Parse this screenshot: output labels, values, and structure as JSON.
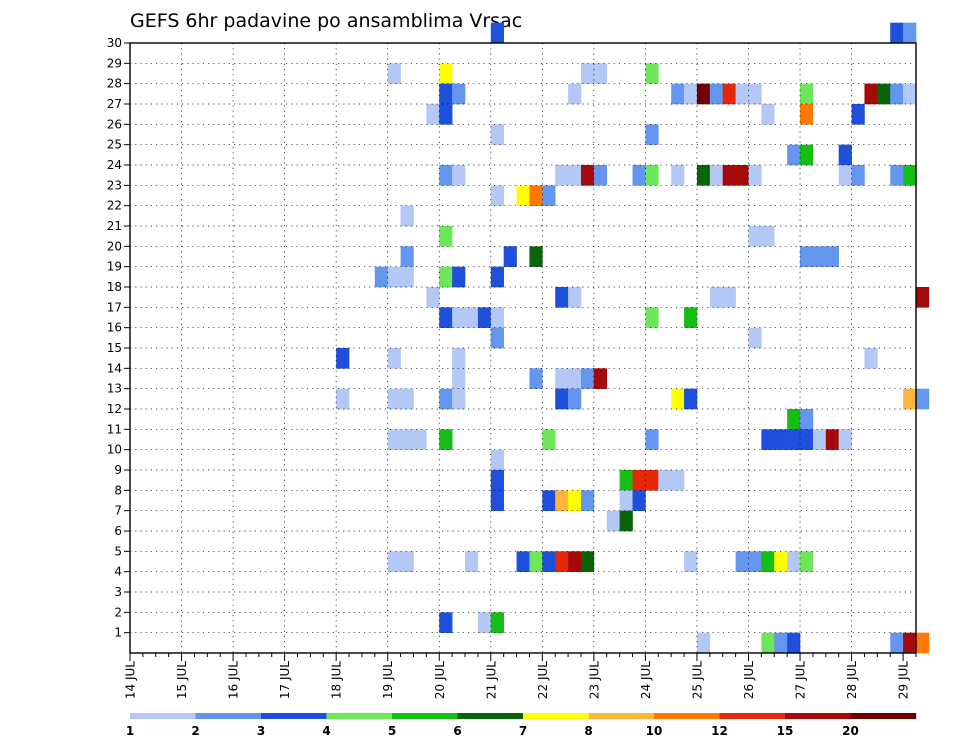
{
  "chart_data": {
    "type": "heatmap",
    "title": "GEFS 6hr padavine po ansamblima Vrsac",
    "x_ticks": [
      "14 JUL",
      "15 JUL",
      "16 JUL",
      "17 JUL",
      "18 JUL",
      "19 JUL",
      "20 JUL",
      "21 JUL",
      "22 JUL",
      "23 JUL",
      "24 JUL",
      "25 JUL",
      "26 JUL",
      "27 JUL",
      "28 JUL",
      "29 JUL"
    ],
    "y_ticks": [
      "1",
      "2",
      "3",
      "4",
      "5",
      "6",
      "7",
      "8",
      "9",
      "10",
      "11",
      "12",
      "13",
      "14",
      "15",
      "16",
      "17",
      "18",
      "19",
      "20",
      "21",
      "22",
      "23",
      "24",
      "25",
      "26",
      "27",
      "28",
      "29",
      "30"
    ],
    "x_range": [
      "14 JUL 00h",
      "29 JUL 06h"
    ],
    "x_step_hours": 6,
    "y_range": [
      0,
      30
    ],
    "grid": true,
    "colorbar": {
      "position": "bottom",
      "labels": [
        "1",
        "2",
        "3",
        "4",
        "5",
        "6",
        "7",
        "8",
        "10",
        "12",
        "15",
        "20"
      ],
      "colors": [
        "#b4c8f5",
        "#6496f0",
        "#1e50dc",
        "#6ee65a",
        "#14be14",
        "#0a640a",
        "#ffff00",
        "#ffb43c",
        "#ff7800",
        "#e6280a",
        "#a50a0a",
        "#6e0000"
      ]
    },
    "cells": [
      {
        "x": "21 JUL 00h",
        "y": 30,
        "level": 3
      },
      {
        "x": "28 JUL 18h",
        "y": 30,
        "level": 3
      },
      {
        "x": "29 JUL 00h",
        "y": 30,
        "level": 2
      },
      {
        "x": "19 JUL 00h",
        "y": 28,
        "level": 1
      },
      {
        "x": "20 JUL 00h",
        "y": 28,
        "level": 7
      },
      {
        "x": "22 JUL 18h",
        "y": 28,
        "level": 1
      },
      {
        "x": "23 JUL 00h",
        "y": 28,
        "level": 1
      },
      {
        "x": "24 JUL 00h",
        "y": 28,
        "level": 4
      },
      {
        "x": "20 JUL 00h",
        "y": 27,
        "level": 3
      },
      {
        "x": "20 JUL 06h",
        "y": 27,
        "level": 2
      },
      {
        "x": "22 JUL 12h",
        "y": 27,
        "level": 1
      },
      {
        "x": "24 JUL 12h",
        "y": 27,
        "level": 2
      },
      {
        "x": "24 JUL 18h",
        "y": 27,
        "level": 1
      },
      {
        "x": "25 JUL 00h",
        "y": 27,
        "level": 12
      },
      {
        "x": "25 JUL 06h",
        "y": 27,
        "level": 2
      },
      {
        "x": "25 JUL 12h",
        "y": 27,
        "level": 10
      },
      {
        "x": "25 JUL 18h",
        "y": 27,
        "level": 1
      },
      {
        "x": "26 JUL 00h",
        "y": 27,
        "level": 1
      },
      {
        "x": "27 JUL 00h",
        "y": 27,
        "level": 4
      },
      {
        "x": "28 JUL 06h",
        "y": 27,
        "level": 11
      },
      {
        "x": "28 JUL 12h",
        "y": 27,
        "level": 6
      },
      {
        "x": "28 JUL 18h",
        "y": 27,
        "level": 2
      },
      {
        "x": "29 JUL 00h",
        "y": 27,
        "level": 1
      },
      {
        "x": "19 JUL 18h",
        "y": 26,
        "level": 1
      },
      {
        "x": "20 JUL 00h",
        "y": 26,
        "level": 3
      },
      {
        "x": "26 JUL 06h",
        "y": 26,
        "level": 1
      },
      {
        "x": "27 JUL 00h",
        "y": 26,
        "level": 9
      },
      {
        "x": "28 JUL 00h",
        "y": 26,
        "level": 3
      },
      {
        "x": "21 JUL 00h",
        "y": 25,
        "level": 1
      },
      {
        "x": "24 JUL 00h",
        "y": 25,
        "level": 2
      },
      {
        "x": "26 JUL 18h",
        "y": 24,
        "level": 2
      },
      {
        "x": "27 JUL 00h",
        "y": 24,
        "level": 5
      },
      {
        "x": "27 JUL 18h",
        "y": 24,
        "level": 3
      },
      {
        "x": "20 JUL 00h",
        "y": 23,
        "level": 2
      },
      {
        "x": "20 JUL 06h",
        "y": 23,
        "level": 1
      },
      {
        "x": "22 JUL 06h",
        "y": 23,
        "level": 1
      },
      {
        "x": "22 JUL 12h",
        "y": 23,
        "level": 1
      },
      {
        "x": "22 JUL 18h",
        "y": 23,
        "level": 11
      },
      {
        "x": "23 JUL 00h",
        "y": 23,
        "level": 2
      },
      {
        "x": "23 JUL 18h",
        "y": 23,
        "level": 2
      },
      {
        "x": "24 JUL 00h",
        "y": 23,
        "level": 4
      },
      {
        "x": "24 JUL 12h",
        "y": 23,
        "level": 1
      },
      {
        "x": "25 JUL 00h",
        "y": 23,
        "level": 6
      },
      {
        "x": "25 JUL 06h",
        "y": 23,
        "level": 1
      },
      {
        "x": "25 JUL 12h",
        "y": 23,
        "level": 11
      },
      {
        "x": "25 JUL 18h",
        "y": 23,
        "level": 11
      },
      {
        "x": "26 JUL 00h",
        "y": 23,
        "level": 1
      },
      {
        "x": "27 JUL 18h",
        "y": 23,
        "level": 1
      },
      {
        "x": "28 JUL 00h",
        "y": 23,
        "level": 2
      },
      {
        "x": "28 JUL 18h",
        "y": 23,
        "level": 2
      },
      {
        "x": "29 JUL 00h",
        "y": 23,
        "level": 5
      },
      {
        "x": "21 JUL 00h",
        "y": 22,
        "level": 1
      },
      {
        "x": "21 JUL 12h",
        "y": 22,
        "level": 7
      },
      {
        "x": "21 JUL 18h",
        "y": 22,
        "level": 9
      },
      {
        "x": "22 JUL 00h",
        "y": 22,
        "level": 2
      },
      {
        "x": "19 JUL 06h",
        "y": 21,
        "level": 1
      },
      {
        "x": "20 JUL 00h",
        "y": 20,
        "level": 4
      },
      {
        "x": "26 JUL 00h",
        "y": 20,
        "level": 1
      },
      {
        "x": "26 JUL 06h",
        "y": 20,
        "level": 1
      },
      {
        "x": "19 JUL 06h",
        "y": 19,
        "level": 2
      },
      {
        "x": "21 JUL 06h",
        "y": 19,
        "level": 3
      },
      {
        "x": "21 JUL 18h",
        "y": 19,
        "level": 6
      },
      {
        "x": "27 JUL 00h",
        "y": 19,
        "level": 2
      },
      {
        "x": "27 JUL 06h",
        "y": 19,
        "level": 2
      },
      {
        "x": "27 JUL 12h",
        "y": 19,
        "level": 2
      },
      {
        "x": "18 JUL 18h",
        "y": 18,
        "level": 2
      },
      {
        "x": "19 JUL 00h",
        "y": 18,
        "level": 1
      },
      {
        "x": "19 JUL 06h",
        "y": 18,
        "level": 1
      },
      {
        "x": "20 JUL 00h",
        "y": 18,
        "level": 4
      },
      {
        "x": "20 JUL 06h",
        "y": 18,
        "level": 3
      },
      {
        "x": "21 JUL 00h",
        "y": 18,
        "level": 3
      },
      {
        "x": "19 JUL 18h",
        "y": 17,
        "level": 1
      },
      {
        "x": "22 JUL 06h",
        "y": 17,
        "level": 3
      },
      {
        "x": "22 JUL 12h",
        "y": 17,
        "level": 1
      },
      {
        "x": "25 JUL 06h",
        "y": 17,
        "level": 1
      },
      {
        "x": "25 JUL 12h",
        "y": 17,
        "level": 1
      },
      {
        "x": "29 JUL 06h",
        "y": 17,
        "level": 11
      },
      {
        "x": "20 JUL 00h",
        "y": 16,
        "level": 3
      },
      {
        "x": "20 JUL 06h",
        "y": 16,
        "level": 1
      },
      {
        "x": "20 JUL 12h",
        "y": 16,
        "level": 1
      },
      {
        "x": "20 JUL 18h",
        "y": 16,
        "level": 3
      },
      {
        "x": "21 JUL 00h",
        "y": 16,
        "level": 1
      },
      {
        "x": "24 JUL 00h",
        "y": 16,
        "level": 4
      },
      {
        "x": "24 JUL 18h",
        "y": 16,
        "level": 5
      },
      {
        "x": "21 JUL 00h",
        "y": 15,
        "level": 2
      },
      {
        "x": "26 JUL 00h",
        "y": 15,
        "level": 1
      },
      {
        "x": "18 JUL 00h",
        "y": 14,
        "level": 3
      },
      {
        "x": "19 JUL 00h",
        "y": 14,
        "level": 1
      },
      {
        "x": "20 JUL 06h",
        "y": 14,
        "level": 1
      },
      {
        "x": "28 JUL 06h",
        "y": 14,
        "level": 1
      },
      {
        "x": "20 JUL 06h",
        "y": 13,
        "level": 1
      },
      {
        "x": "21 JUL 18h",
        "y": 13,
        "level": 2
      },
      {
        "x": "22 JUL 06h",
        "y": 13,
        "level": 1
      },
      {
        "x": "22 JUL 12h",
        "y": 13,
        "level": 1
      },
      {
        "x": "22 JUL 18h",
        "y": 13,
        "level": 2
      },
      {
        "x": "23 JUL 00h",
        "y": 13,
        "level": 11
      },
      {
        "x": "18 JUL 00h",
        "y": 12,
        "level": 1
      },
      {
        "x": "19 JUL 00h",
        "y": 12,
        "level": 1
      },
      {
        "x": "19 JUL 06h",
        "y": 12,
        "level": 1
      },
      {
        "x": "20 JUL 00h",
        "y": 12,
        "level": 2
      },
      {
        "x": "20 JUL 06h",
        "y": 12,
        "level": 1
      },
      {
        "x": "22 JUL 06h",
        "y": 12,
        "level": 3
      },
      {
        "x": "22 JUL 12h",
        "y": 12,
        "level": 2
      },
      {
        "x": "24 JUL 12h",
        "y": 12,
        "level": 7
      },
      {
        "x": "24 JUL 18h",
        "y": 12,
        "level": 3
      },
      {
        "x": "29 JUL 00h",
        "y": 12,
        "level": 8
      },
      {
        "x": "29 JUL 06h",
        "y": 12,
        "level": 2
      },
      {
        "x": "26 JUL 18h",
        "y": 11,
        "level": 5
      },
      {
        "x": "27 JUL 00h",
        "y": 11,
        "level": 2
      },
      {
        "x": "19 JUL 00h",
        "y": 10,
        "level": 1
      },
      {
        "x": "19 JUL 06h",
        "y": 10,
        "level": 1
      },
      {
        "x": "19 JUL 12h",
        "y": 10,
        "level": 1
      },
      {
        "x": "20 JUL 00h",
        "y": 10,
        "level": 5
      },
      {
        "x": "22 JUL 00h",
        "y": 10,
        "level": 4
      },
      {
        "x": "24 JUL 00h",
        "y": 10,
        "level": 2
      },
      {
        "x": "26 JUL 06h",
        "y": 10,
        "level": 3
      },
      {
        "x": "26 JUL 12h",
        "y": 10,
        "level": 3
      },
      {
        "x": "26 JUL 18h",
        "y": 10,
        "level": 3
      },
      {
        "x": "27 JUL 00h",
        "y": 10,
        "level": 3
      },
      {
        "x": "27 JUL 06h",
        "y": 10,
        "level": 1
      },
      {
        "x": "27 JUL 12h",
        "y": 10,
        "level": 11
      },
      {
        "x": "27 JUL 18h",
        "y": 10,
        "level": 1
      },
      {
        "x": "21 JUL 00h",
        "y": 9,
        "level": 1
      },
      {
        "x": "21 JUL 00h",
        "y": 8,
        "level": 3
      },
      {
        "x": "23 JUL 12h",
        "y": 8,
        "level": 5
      },
      {
        "x": "23 JUL 18h",
        "y": 8,
        "level": 10
      },
      {
        "x": "24 JUL 00h",
        "y": 8,
        "level": 10
      },
      {
        "x": "24 JUL 06h",
        "y": 8,
        "level": 1
      },
      {
        "x": "24 JUL 12h",
        "y": 8,
        "level": 1
      },
      {
        "x": "21 JUL 00h",
        "y": 7,
        "level": 3
      },
      {
        "x": "22 JUL 00h",
        "y": 7,
        "level": 3
      },
      {
        "x": "22 JUL 06h",
        "y": 7,
        "level": 8
      },
      {
        "x": "22 JUL 12h",
        "y": 7,
        "level": 7
      },
      {
        "x": "22 JUL 18h",
        "y": 7,
        "level": 2
      },
      {
        "x": "23 JUL 12h",
        "y": 7,
        "level": 1
      },
      {
        "x": "23 JUL 18h",
        "y": 7,
        "level": 3
      },
      {
        "x": "23 JUL 06h",
        "y": 6,
        "level": 1
      },
      {
        "x": "23 JUL 12h",
        "y": 6,
        "level": 6
      },
      {
        "x": "19 JUL 00h",
        "y": 4,
        "level": 1
      },
      {
        "x": "19 JUL 06h",
        "y": 4,
        "level": 1
      },
      {
        "x": "20 JUL 12h",
        "y": 4,
        "level": 1
      },
      {
        "x": "21 JUL 12h",
        "y": 4,
        "level": 3
      },
      {
        "x": "21 JUL 18h",
        "y": 4,
        "level": 4
      },
      {
        "x": "22 JUL 00h",
        "y": 4,
        "level": 3
      },
      {
        "x": "22 JUL 06h",
        "y": 4,
        "level": 10
      },
      {
        "x": "22 JUL 12h",
        "y": 4,
        "level": 11
      },
      {
        "x": "22 JUL 18h",
        "y": 4,
        "level": 6
      },
      {
        "x": "24 JUL 18h",
        "y": 4,
        "level": 1
      },
      {
        "x": "25 JUL 18h",
        "y": 4,
        "level": 2
      },
      {
        "x": "26 JUL 00h",
        "y": 4,
        "level": 2
      },
      {
        "x": "26 JUL 06h",
        "y": 4,
        "level": 5
      },
      {
        "x": "26 JUL 12h",
        "y": 4,
        "level": 7
      },
      {
        "x": "26 JUL 18h",
        "y": 4,
        "level": 1
      },
      {
        "x": "27 JUL 00h",
        "y": 4,
        "level": 4
      },
      {
        "x": "20 JUL 00h",
        "y": 1,
        "level": 3
      },
      {
        "x": "20 JUL 18h",
        "y": 1,
        "level": 1
      },
      {
        "x": "21 JUL 00h",
        "y": 1,
        "level": 5
      },
      {
        "x": "25 JUL 00h",
        "y": 0,
        "level": 1
      },
      {
        "x": "26 JUL 06h",
        "y": 0,
        "level": 4
      },
      {
        "x": "26 JUL 12h",
        "y": 0,
        "level": 2
      },
      {
        "x": "26 JUL 18h",
        "y": 0,
        "level": 3
      },
      {
        "x": "28 JUL 18h",
        "y": 0,
        "level": 2
      },
      {
        "x": "29 JUL 00h",
        "y": 0,
        "level": 11
      },
      {
        "x": "29 JUL 06h",
        "y": 0,
        "level": 9
      }
    ]
  }
}
